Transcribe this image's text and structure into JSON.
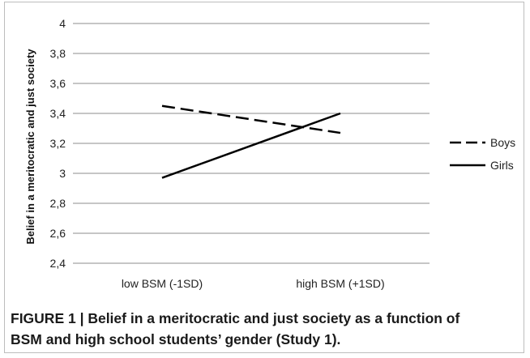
{
  "chart_data": {
    "type": "line",
    "categories": [
      "low BSM (-1SD)",
      "high BSM (+1SD)"
    ],
    "series": [
      {
        "name": "Boys",
        "values": [
          3.45,
          3.27
        ],
        "style": "dashed",
        "color": "#000000"
      },
      {
        "name": "Girls",
        "values": [
          2.97,
          3.4
        ],
        "style": "solid",
        "color": "#000000"
      }
    ],
    "xlabel": "",
    "ylabel": "Belief in a meritocratic and just society",
    "ylim": [
      2.4,
      4
    ],
    "yticks": [
      "2,4",
      "2,6",
      "2,8",
      "3",
      "3,2",
      "3,4",
      "3,6",
      "3,8",
      "4"
    ],
    "grid": true,
    "legend": "right"
  },
  "caption": {
    "line1": "FIGURE 1 | Belief in a meritocratic and just society as a function of",
    "line2": "BSM and high school students’ gender (Study 1)."
  }
}
